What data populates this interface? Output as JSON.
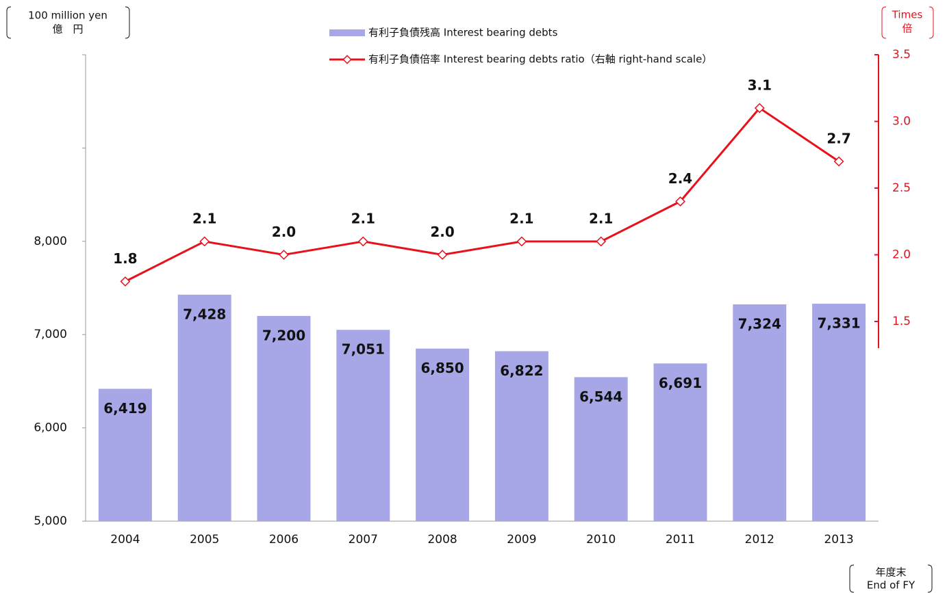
{
  "chart_data": {
    "type": "bar-line",
    "y_unit": [
      "100 million yen",
      "億　円"
    ],
    "y2_unit": [
      "Times",
      "倍"
    ],
    "x_unit": [
      "年度末",
      "End of FY"
    ],
    "categories": [
      "2004",
      "2005",
      "2006",
      "2007",
      "2008",
      "2009",
      "2010",
      "2011",
      "2012",
      "2013"
    ],
    "series": [
      {
        "name": "有利子負債残高 Interest bearing debts",
        "type": "bar",
        "color": "#a7a7e8",
        "values": [
          6419,
          7428,
          7200,
          7051,
          6850,
          6822,
          6544,
          6691,
          7324,
          7331
        ],
        "value_labels": [
          "6,419",
          "7,428",
          "7,200",
          "7,051",
          "6,850",
          "6,822",
          "6,544",
          "6,691",
          "7,324",
          "7,331"
        ]
      },
      {
        "name": "有利子負債倍率 Interest bearing debts ratio（右軸 right-hand scale）",
        "type": "line",
        "axis": "y2",
        "color": "#e8111b",
        "values": [
          1.8,
          2.1,
          2.0,
          2.1,
          2.0,
          2.1,
          2.1,
          2.4,
          3.1,
          2.7
        ],
        "value_labels": [
          "1.8",
          "2.1",
          "2.0",
          "2.1",
          "2.0",
          "2.1",
          "2.1",
          "2.4",
          "3.1",
          "2.7"
        ]
      }
    ],
    "ylim": [
      5000,
      10000
    ],
    "yticks": [
      {
        "value": 5000,
        "label": "5,000"
      },
      {
        "value": 6000,
        "label": "6,000"
      },
      {
        "value": 7000,
        "label": "7,000"
      },
      {
        "value": 8000,
        "label": "8,000"
      }
    ],
    "yticks_unlabeled": [
      9000,
      10000
    ],
    "y2lim": [
      1.3,
      3.5
    ],
    "y2ticks": [
      1.5,
      {
        "value": 2,
        "label": "2.0"
      },
      2.5,
      {
        "value": 3,
        "label": "3.0"
      },
      3.5
    ]
  }
}
